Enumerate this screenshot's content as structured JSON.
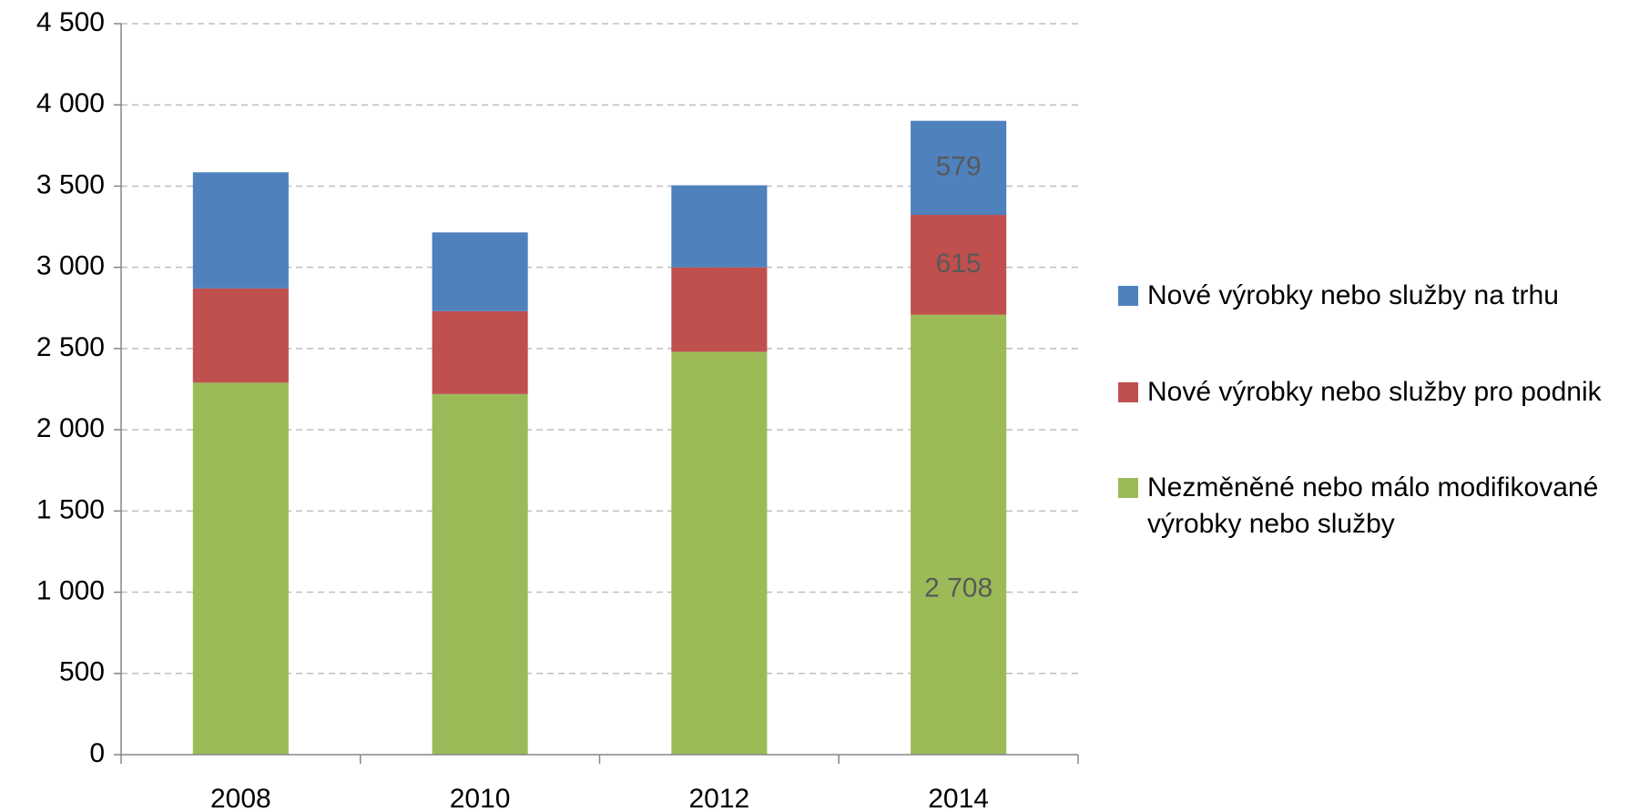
{
  "chart_data": {
    "type": "stacked_bar",
    "categories": [
      "2008",
      "2010",
      "2012",
      "2014"
    ],
    "series": [
      {
        "name": "Nezměněné nebo málo modifikované výrobky nebo služby",
        "color": "#9bbb59",
        "values": [
          2290,
          2220,
          2480,
          2708
        ],
        "value_labels": [
          null,
          null,
          null,
          "2 708"
        ]
      },
      {
        "name": "Nové výrobky nebo služby pro podnik",
        "color": "#c0504d",
        "values": [
          580,
          510,
          520,
          615
        ],
        "value_labels": [
          null,
          null,
          null,
          "615"
        ]
      },
      {
        "name": "Nové výrobky nebo služby na trhu",
        "color": "#4f81bd",
        "values": [
          715,
          485,
          505,
          579
        ],
        "value_labels": [
          null,
          null,
          null,
          "579"
        ]
      }
    ],
    "ylim": [
      0,
      4500
    ],
    "yticks": [
      0,
      500,
      {
        "value": 1000,
        "label": "1 000"
      },
      {
        "value": 1500,
        "label": "1 500"
      },
      {
        "value": 2000,
        "label": "2 000"
      },
      {
        "value": 2500,
        "label": "2 500"
      },
      {
        "value": 3000,
        "label": "3 000"
      },
      {
        "value": 3500,
        "label": "3 500"
      },
      {
        "value": 4000,
        "label": "4 000"
      },
      {
        "value": 4500,
        "label": "4 500"
      }
    ],
    "grid": true,
    "legend": "right"
  }
}
